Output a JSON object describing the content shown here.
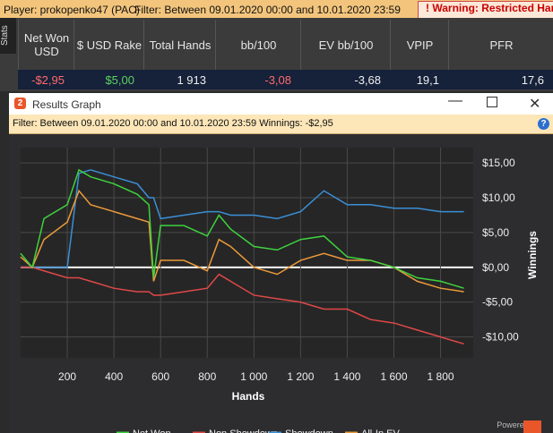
{
  "top_bar": {
    "player": "Player: prokopenko47 (PAC)",
    "filter": "Filter: Between 09.01.2020 00:00 and 10.01.2020 23:59",
    "warning": "Warning: Restricted Hand"
  },
  "stats": {
    "tab": "Stats",
    "headers": [
      "Net Won USD",
      "$ USD Rake",
      "Total Hands",
      "bb/100",
      "EV bb/100",
      "VPIP",
      "PFR"
    ],
    "row": [
      "-$2,95",
      "$5,00",
      "1 913",
      "-3,08",
      "-3,68",
      "19,1",
      "17,6"
    ]
  },
  "window": {
    "title": "Results Graph",
    "filter": "Filter: Between 09.01.2020 00:00 and 10.01.2020 23:59",
    "winnings": "Winnings: -$2,95",
    "powered_by": "Powered by"
  },
  "chart_data": {
    "type": "line",
    "xlabel": "Hands",
    "ylabel": "Winnings",
    "x": [
      0,
      50,
      100,
      200,
      250,
      300,
      400,
      500,
      550,
      570,
      600,
      700,
      800,
      850,
      900,
      1000,
      1100,
      1200,
      1300,
      1400,
      1500,
      1600,
      1700,
      1800,
      1900
    ],
    "series": [
      {
        "name": "Net Won",
        "color": "#3ed23e",
        "values": [
          2,
          0,
          7,
          9,
          14,
          13,
          12,
          10.5,
          9,
          -1.5,
          6,
          6,
          4.5,
          7.5,
          5.5,
          3,
          2.5,
          4,
          4.5,
          1.5,
          1,
          0,
          -1.5,
          -2,
          -3
        ]
      },
      {
        "name": "Non Showdown",
        "color": "#e04848",
        "values": [
          0,
          0,
          -0.5,
          -1.5,
          -1.5,
          -2,
          -3,
          -3.5,
          -3.5,
          -4,
          -4,
          -3.5,
          -3,
          -1,
          -2,
          -4,
          -4.5,
          -5,
          -6,
          -6,
          -7.5,
          -8,
          -9,
          -10,
          -11
        ]
      },
      {
        "name": "Showdown",
        "color": "#3a8fd6",
        "values": [
          0,
          0,
          0,
          0,
          13.5,
          14,
          13,
          12,
          10,
          10,
          7,
          7.5,
          8,
          8,
          7.5,
          7.5,
          7,
          8,
          11,
          9,
          9,
          8.5,
          8.5,
          8,
          8
        ]
      },
      {
        "name": "All-In EV",
        "color": "#ec9a3a",
        "values": [
          1.5,
          0,
          4,
          6.5,
          11,
          9,
          8,
          7,
          6.5,
          -2,
          1,
          1,
          -0.5,
          4,
          3,
          0,
          -1,
          1,
          2,
          1,
          1,
          0,
          -2,
          -3,
          -3.5
        ]
      }
    ],
    "xlim": [
      0,
      1940
    ],
    "ylim": [
      -13,
      17.2
    ],
    "xticks": [
      200,
      400,
      600,
      800,
      {
        "value": 1000,
        "label": "1 000"
      },
      {
        "value": 1200,
        "label": "1 200"
      },
      {
        "value": 1400,
        "label": "1 400"
      },
      {
        "value": 1600,
        "label": "1 600"
      },
      {
        "value": 1800,
        "label": "1 800"
      }
    ],
    "yticks": [
      {
        "value": -10,
        "label": "-$10,00"
      },
      {
        "value": -5,
        "label": "-$5,00"
      },
      {
        "value": 0,
        "label": "$0,00"
      },
      {
        "value": 5,
        "label": "$5,00"
      },
      {
        "value": 10,
        "label": "$10,00"
      },
      {
        "value": 15,
        "label": "$15,00"
      }
    ],
    "grid": true
  }
}
